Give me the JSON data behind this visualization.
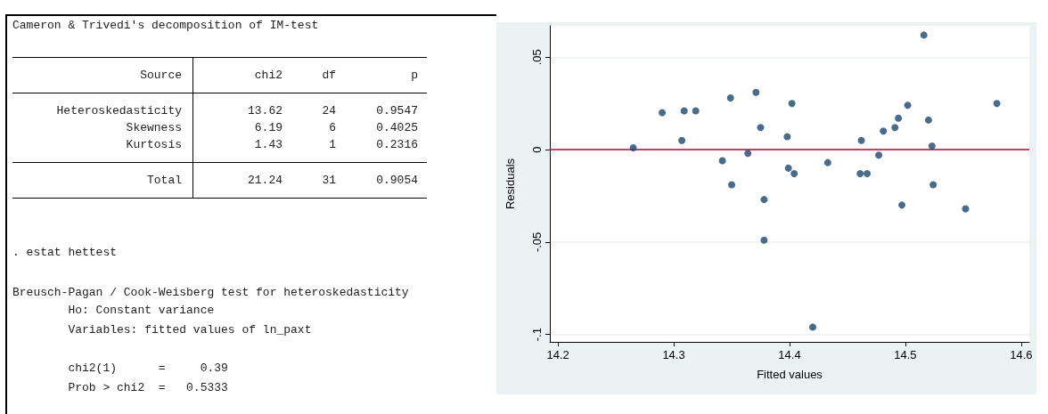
{
  "chart_data": [
    {
      "type": "other",
      "title": "Cameron & Trivedi's decomposition of IM-test",
      "annotations": [
        "Source  chi2  df  p",
        "Heteroskedasticity  13.62  24  0.9547",
        "Skewness  6.19  6  0.4025",
        "Kurtosis  1.43  1  0.2316",
        "Total  21.24  31  0.9054",
        ". estat hettest",
        "Breusch-Pagan / Cook-Weisberg test for heteroskedasticity",
        "        Ho: Constant variance",
        "        Variables: fitted values of ln_paxt",
        "        chi2(1)      =     0.39",
        "        Prob > chi2  =   0.5333"
      ]
    },
    {
      "type": "scatter",
      "xlabel": "Fitted values",
      "ylabel": "Residuals",
      "color": "#1a476f",
      "marker": "circle",
      "grid": "y",
      "x": [
        14.265,
        14.29,
        14.309,
        14.319,
        14.307,
        14.349,
        14.371,
        14.375,
        14.342,
        14.364,
        14.35,
        14.378,
        14.378,
        14.516,
        14.402,
        14.579,
        14.502,
        14.494,
        14.52,
        14.491,
        14.481,
        14.398,
        14.462,
        14.523,
        14.477,
        14.433,
        14.399,
        14.404,
        14.461,
        14.467,
        14.524,
        14.497,
        14.552,
        14.42
      ],
      "values": [
        0.001,
        0.02,
        0.021,
        0.021,
        0.005,
        0.028,
        0.031,
        0.012,
        -0.006,
        -0.002,
        -0.019,
        -0.027,
        -0.049,
        0.062,
        0.025,
        0.025,
        0.024,
        0.017,
        0.016,
        0.012,
        0.01,
        0.007,
        0.005,
        0.002,
        -0.003,
        -0.007,
        -0.01,
        -0.013,
        -0.013,
        -0.013,
        -0.019,
        -0.03,
        -0.032,
        -0.096
      ],
      "xlim": [
        14.193,
        14.607
      ],
      "xticks": [
        14.2,
        14.3,
        14.4,
        14.5,
        14.6
      ],
      "ylim": [
        -0.104,
        0.067
      ],
      "yticks": [
        {
          "value": -0.1,
          "label": "-.1"
        },
        {
          "value": -0.05,
          "label": "-.05"
        },
        {
          "value": 0,
          "label": "0"
        },
        {
          "value": 0.05,
          "label": ".05"
        }
      ],
      "ref_lines": [
        {
          "axis": "y",
          "value": 0,
          "color": "#c10534",
          "line_style": "solid"
        }
      ]
    }
  ]
}
